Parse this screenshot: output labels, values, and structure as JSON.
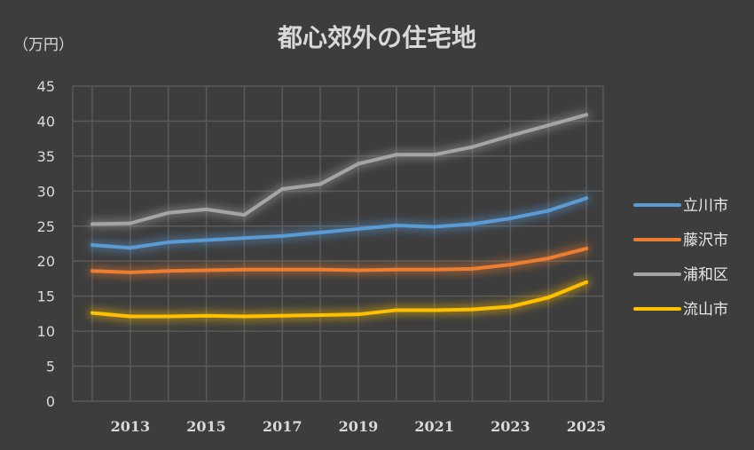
{
  "chart_data": {
    "type": "line",
    "title": "都心郊外の住宅地",
    "unit_label": "（万円）",
    "xlabel": "",
    "ylabel": "",
    "x": [
      2012,
      2013,
      2014,
      2015,
      2016,
      2017,
      2018,
      2019,
      2020,
      2021,
      2022,
      2023,
      2024,
      2025
    ],
    "x_tick_labels": [
      "2013",
      "2015",
      "2017",
      "2019",
      "2021",
      "2023",
      "2025"
    ],
    "y_tick_labels": [
      "0",
      "5",
      "10",
      "15",
      "20",
      "25",
      "30",
      "35",
      "40",
      "45"
    ],
    "ylim": [
      0,
      45
    ],
    "grid": true,
    "legend_position": "right",
    "series": [
      {
        "name": "立川市",
        "color": "#5b9bd5",
        "values": [
          22.3,
          21.9,
          22.7,
          23.0,
          23.3,
          23.6,
          24.1,
          24.6,
          25.1,
          24.9,
          25.3,
          26.1,
          27.2,
          29.0
        ]
      },
      {
        "name": "藤沢市",
        "color": "#ed7d31",
        "values": [
          18.6,
          18.4,
          18.6,
          18.7,
          18.8,
          18.8,
          18.8,
          18.7,
          18.8,
          18.8,
          18.9,
          19.5,
          20.4,
          21.8
        ]
      },
      {
        "name": "浦和区",
        "color": "#a5a5a5",
        "values": [
          25.3,
          25.4,
          26.9,
          27.4,
          26.6,
          30.3,
          31.0,
          33.9,
          35.2,
          35.2,
          36.3,
          37.9,
          39.4,
          40.9
        ]
      },
      {
        "name": "流山市",
        "color": "#ffc000",
        "values": [
          12.6,
          12.1,
          12.1,
          12.2,
          12.1,
          12.2,
          12.3,
          12.4,
          13.0,
          13.0,
          13.1,
          13.5,
          14.8,
          17.0
        ]
      }
    ]
  }
}
